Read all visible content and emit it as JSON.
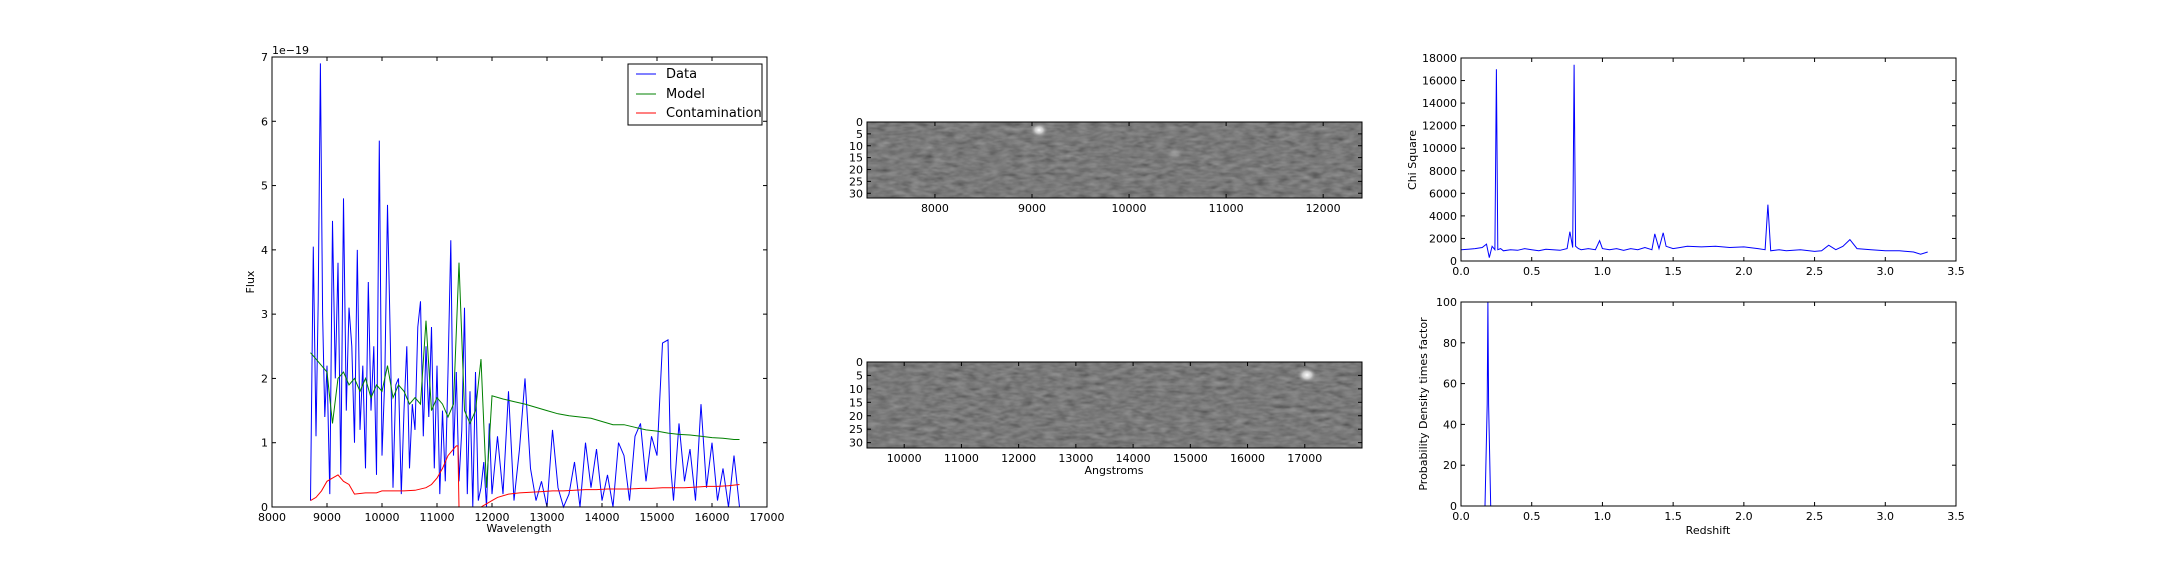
{
  "chart_data": [
    {
      "id": "spectrum",
      "type": "line",
      "title": "",
      "xlabel": "Wavelength",
      "ylabel": "Flux",
      "offset_text": "1e−19",
      "xlim": [
        8000,
        17000
      ],
      "ylim": [
        0,
        7
      ],
      "xticks": [
        8000,
        9000,
        10000,
        11000,
        12000,
        13000,
        14000,
        15000,
        16000,
        17000
      ],
      "yticks": [
        0,
        1,
        2,
        3,
        4,
        5,
        6,
        7
      ],
      "legend_position": "top-right",
      "series": [
        {
          "name": "Data",
          "color": "#0000ff",
          "x": [
            8700,
            8750,
            8800,
            8840,
            8880,
            8920,
            8960,
            9000,
            9050,
            9100,
            9150,
            9200,
            9250,
            9300,
            9350,
            9400,
            9450,
            9500,
            9550,
            9600,
            9650,
            9700,
            9750,
            9800,
            9850,
            9900,
            9950,
            10000,
            10050,
            10100,
            10150,
            10200,
            10250,
            10300,
            10350,
            10400,
            10450,
            10500,
            10550,
            10600,
            10650,
            10700,
            10750,
            10800,
            10850,
            10900,
            10950,
            11000,
            11050,
            11100,
            11150,
            11200,
            11250,
            11300,
            11350,
            11400,
            11450,
            11500,
            11550,
            11600,
            11650,
            11700,
            11750,
            11800,
            11850,
            11900,
            11950,
            12000,
            12100,
            12200,
            12300,
            12400,
            12500,
            12600,
            12700,
            12800,
            12900,
            13000,
            13100,
            13200,
            13300,
            13400,
            13500,
            13600,
            13700,
            13800,
            13900,
            14000,
            14100,
            14200,
            14300,
            14400,
            14500,
            14600,
            14700,
            14800,
            14900,
            15000,
            15100,
            15200,
            15250,
            15300,
            15400,
            15500,
            15600,
            15700,
            15800,
            15900,
            16000,
            16100,
            16200,
            16300,
            16400,
            16500
          ],
          "y": [
            0.1,
            4.05,
            1.1,
            3.2,
            6.9,
            3.0,
            1.4,
            2.2,
            0.2,
            4.45,
            2.0,
            3.8,
            0.5,
            4.8,
            1.5,
            3.1,
            2.5,
            1.0,
            4.0,
            1.2,
            2.2,
            0.6,
            3.5,
            1.5,
            2.5,
            0.5,
            5.7,
            0.8,
            2.0,
            4.7,
            2.6,
            0.3,
            1.9,
            2.0,
            0.2,
            1.5,
            2.5,
            0.6,
            1.6,
            1.2,
            2.8,
            3.2,
            1.1,
            2.5,
            1.4,
            2.8,
            0.6,
            2.2,
            0.2,
            1.5,
            0.4,
            2.1,
            4.15,
            0.8,
            2.1,
            0.4,
            1.2,
            3.1,
            0.2,
            1.8,
            0.0,
            2.1,
            0.1,
            0.3,
            0.7,
            0.0,
            1.3,
            0.2,
            1.1,
            0.2,
            1.8,
            0.1,
            0.9,
            2.0,
            0.6,
            0.1,
            0.4,
            0.0,
            1.2,
            0.3,
            0.0,
            0.2,
            0.7,
            0.0,
            1.0,
            0.3,
            0.9,
            0.1,
            0.5,
            0.0,
            1.0,
            0.8,
            0.1,
            1.1,
            1.3,
            0.4,
            1.1,
            0.8,
            2.55,
            2.6,
            0.6,
            0.1,
            1.3,
            0.4,
            0.9,
            0.1,
            1.6,
            0.3,
            1.0,
            0.1,
            0.6,
            0.0,
            0.8,
            0.0
          ]
        },
        {
          "name": "Model",
          "color": "#008000",
          "x": [
            8700,
            8800,
            8900,
            9000,
            9100,
            9200,
            9300,
            9400,
            9500,
            9600,
            9700,
            9800,
            9900,
            10000,
            10100,
            10200,
            10300,
            10400,
            10500,
            10600,
            10700,
            10800,
            10900,
            11000,
            11100,
            11200,
            11300,
            11400,
            11500,
            11600,
            11700,
            11800,
            11900,
            12000,
            12200,
            12400,
            12600,
            12800,
            13000,
            13200,
            13400,
            13600,
            13800,
            14000,
            14200,
            14400,
            14600,
            14800,
            15000,
            15200,
            15400,
            15600,
            15800,
            16000,
            16200,
            16400,
            16500
          ],
          "y": [
            2.4,
            2.3,
            2.2,
            2.1,
            1.3,
            2.0,
            2.1,
            1.9,
            2.0,
            1.8,
            2.0,
            1.7,
            1.9,
            1.8,
            2.2,
            1.7,
            1.9,
            1.8,
            1.6,
            1.7,
            1.6,
            2.9,
            1.5,
            1.7,
            1.6,
            1.4,
            1.6,
            3.8,
            1.5,
            1.3,
            1.5,
            2.3,
            0.3,
            1.73,
            1.68,
            1.64,
            1.6,
            1.55,
            1.5,
            1.45,
            1.42,
            1.4,
            1.38,
            1.33,
            1.28,
            1.28,
            1.24,
            1.2,
            1.18,
            1.15,
            1.13,
            1.12,
            1.1,
            1.08,
            1.07,
            1.05,
            1.05
          ]
        },
        {
          "name": "Contamination",
          "color": "#ff0000",
          "x": [
            8700,
            8800,
            8900,
            9000,
            9100,
            9200,
            9300,
            9400,
            9500,
            9700,
            9900,
            10000,
            10200,
            10400,
            10600,
            10800,
            10900,
            11000,
            11100,
            11200,
            11300,
            11350,
            11380,
            11400,
            11500,
            11700,
            11800,
            11900,
            12000,
            12100,
            12300,
            12500,
            12700,
            12900,
            13100,
            13300,
            13500,
            13700,
            13900,
            14100,
            14300,
            14500,
            14700,
            14900,
            15100,
            15300,
            15500,
            15700,
            15900,
            16100,
            16300,
            16500
          ],
          "y": [
            0.1,
            0.15,
            0.25,
            0.4,
            0.45,
            0.5,
            0.4,
            0.35,
            0.2,
            0.22,
            0.22,
            0.25,
            0.25,
            0.25,
            0.26,
            0.3,
            0.35,
            0.45,
            0.6,
            0.8,
            0.9,
            0.95,
            0.95,
            0.0,
            0.0,
            0.0,
            0.0,
            0.05,
            0.1,
            0.15,
            0.2,
            0.22,
            0.23,
            0.24,
            0.25,
            0.25,
            0.26,
            0.27,
            0.27,
            0.28,
            0.28,
            0.28,
            0.29,
            0.29,
            0.3,
            0.3,
            0.3,
            0.31,
            0.32,
            0.32,
            0.33,
            0.35
          ]
        }
      ]
    },
    {
      "id": "image_top",
      "type": "heatmap",
      "title": "",
      "xlabel": "",
      "ylabel": "",
      "xlim": [
        7300,
        12400
      ],
      "ylim": [
        32,
        0
      ],
      "xticks": [
        8000,
        9000,
        10000,
        11000,
        12000
      ],
      "yticks": [
        0,
        5,
        10,
        15,
        20,
        25,
        30
      ],
      "colormap": "gray",
      "bright_spots": [
        {
          "x": 9070,
          "y": 2,
          "intensity": 1.0
        },
        {
          "x": 10500,
          "y": 14,
          "intensity": 0.25
        }
      ]
    },
    {
      "id": "image_bottom",
      "type": "heatmap",
      "title": "",
      "xlabel": "Angstroms",
      "ylabel": "",
      "xlim": [
        9350,
        18000
      ],
      "ylim": [
        32,
        0
      ],
      "xticks": [
        10000,
        11000,
        12000,
        13000,
        14000,
        15000,
        16000,
        17000
      ],
      "yticks": [
        0,
        5,
        10,
        15,
        20,
        25,
        30
      ],
      "colormap": "gray",
      "bright_spots": [
        {
          "x": 17150,
          "y": 5,
          "intensity": 1.0
        }
      ]
    },
    {
      "id": "chisq",
      "type": "line",
      "title": "",
      "xlabel": "",
      "ylabel": "Chi Square",
      "xlim": [
        0.0,
        3.5
      ],
      "ylim": [
        0,
        18000
      ],
      "xticks": [
        0.0,
        0.5,
        1.0,
        1.5,
        2.0,
        2.5,
        3.0,
        3.5
      ],
      "yticks": [
        0,
        2000,
        4000,
        6000,
        8000,
        10000,
        12000,
        14000,
        16000,
        18000
      ],
      "series": [
        {
          "color": "#0000ff",
          "x": [
            0.0,
            0.05,
            0.1,
            0.15,
            0.18,
            0.2,
            0.22,
            0.24,
            0.25,
            0.26,
            0.28,
            0.3,
            0.35,
            0.4,
            0.45,
            0.5,
            0.55,
            0.6,
            0.65,
            0.7,
            0.75,
            0.77,
            0.79,
            0.8,
            0.81,
            0.83,
            0.85,
            0.9,
            0.95,
            0.98,
            1.0,
            1.05,
            1.1,
            1.15,
            1.2,
            1.25,
            1.3,
            1.35,
            1.37,
            1.4,
            1.43,
            1.45,
            1.5,
            1.55,
            1.6,
            1.7,
            1.8,
            1.9,
            2.0,
            2.1,
            2.15,
            2.17,
            2.19,
            2.25,
            2.3,
            2.4,
            2.5,
            2.55,
            2.6,
            2.65,
            2.7,
            2.75,
            2.8,
            2.9,
            3.0,
            3.1,
            3.2,
            3.25,
            3.3
          ],
          "y": [
            1000,
            1050,
            1100,
            1200,
            1500,
            300,
            1300,
            1000,
            17000,
            1000,
            1100,
            900,
            1000,
            950,
            1100,
            1000,
            900,
            1050,
            1000,
            950,
            1100,
            2600,
            1200,
            17400,
            1300,
            1100,
            1000,
            1100,
            1000,
            1800,
            1100,
            1000,
            1100,
            950,
            1100,
            1000,
            1200,
            1000,
            2400,
            1100,
            2500,
            1300,
            1100,
            1200,
            1300,
            1250,
            1300,
            1200,
            1250,
            1100,
            1000,
            5000,
            900,
            1000,
            900,
            1000,
            850,
            900,
            1400,
            1000,
            1300,
            1900,
            1100,
            1000,
            900,
            900,
            800,
            600,
            800
          ]
        }
      ]
    },
    {
      "id": "pdf",
      "type": "line",
      "title": "",
      "xlabel": "Redshift",
      "ylabel": "Probability Density times factor",
      "xlim": [
        0.0,
        3.5
      ],
      "ylim": [
        0,
        100
      ],
      "xticks": [
        0.0,
        0.5,
        1.0,
        1.5,
        2.0,
        2.5,
        3.0,
        3.5
      ],
      "yticks": [
        0,
        20,
        40,
        60,
        80,
        100
      ],
      "series": [
        {
          "color": "#0000ff",
          "x": [
            0.0,
            0.17,
            0.185,
            0.19,
            0.195,
            0.21,
            0.5,
            1.0,
            1.5,
            2.0,
            2.5,
            3.0,
            3.3
          ],
          "y": [
            0,
            0,
            50,
            100,
            50,
            0,
            0,
            0,
            0,
            0,
            0,
            0,
            0
          ]
        }
      ]
    }
  ],
  "tick_labels": {
    "spectrum_x": [
      "8000",
      "9000",
      "10000",
      "11000",
      "12000",
      "13000",
      "14000",
      "15000",
      "16000",
      "17000"
    ],
    "spectrum_y": [
      "0",
      "1",
      "2",
      "3",
      "4",
      "5",
      "6",
      "7"
    ],
    "image_top_x": [
      "8000",
      "9000",
      "10000",
      "11000",
      "12000"
    ],
    "image_y": [
      "0",
      "5",
      "10",
      "15",
      "20",
      "25",
      "30"
    ],
    "image_bottom_x": [
      "10000",
      "11000",
      "12000",
      "13000",
      "14000",
      "15000",
      "16000",
      "17000"
    ],
    "redshift_x": [
      "0.0",
      "0.5",
      "1.0",
      "1.5",
      "2.0",
      "2.5",
      "3.0",
      "3.5"
    ],
    "chisq_y": [
      "0",
      "2000",
      "4000",
      "6000",
      "8000",
      "10000",
      "12000",
      "14000",
      "16000",
      "18000"
    ],
    "pdf_y": [
      "0",
      "20",
      "40",
      "60",
      "80",
      "100"
    ]
  }
}
